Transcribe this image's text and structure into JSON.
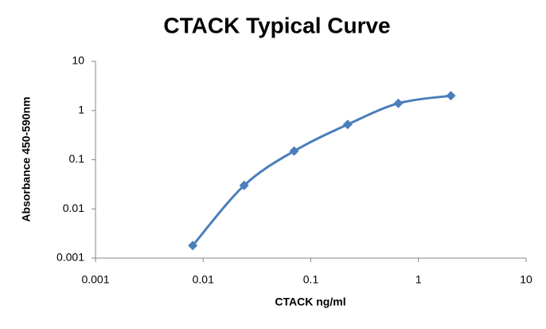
{
  "chart_data": {
    "type": "scatter",
    "title": "CTACK Typical Curve",
    "x_label": "CTACK ng/ml",
    "y_label": "Absorbance 450-590nm",
    "x": [
      0.008,
      0.024,
      0.07,
      0.22,
      0.65,
      2
    ],
    "series": [
      {
        "color": "#4a7ebb",
        "values": [
          0.0018,
          0.03,
          0.15,
          0.52,
          1.4,
          2
        ]
      }
    ],
    "xlim": [
      0.001,
      10
    ],
    "ylim": [
      0.001,
      10
    ],
    "xticks": [
      0.001,
      0.01,
      0.1,
      1,
      10
    ],
    "yticks": [
      0.001,
      0.01,
      0.1,
      1,
      10
    ],
    "x_log": true,
    "y_log": true,
    "grid": false,
    "smooth": true
  }
}
